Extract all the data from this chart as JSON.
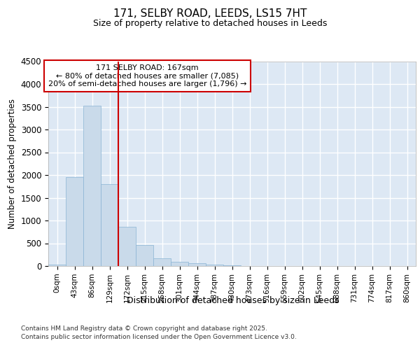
{
  "title_line1": "171, SELBY ROAD, LEEDS, LS15 7HT",
  "title_line2": "Size of property relative to detached houses in Leeds",
  "xlabel": "Distribution of detached houses by size in Leeds",
  "ylabel": "Number of detached properties",
  "annotation_title": "171 SELBY ROAD: 167sqm",
  "annotation_line2": "← 80% of detached houses are smaller (7,085)",
  "annotation_line3": "20% of semi-detached houses are larger (1,796) →",
  "bar_color": "#c9daea",
  "bar_edge_color": "#8ab4d4",
  "vline_color": "#cc0000",
  "annotation_box_color": "#cc0000",
  "background_color": "#dde8f4",
  "grid_color": "#ffffff",
  "categories": [
    "0sqm",
    "43sqm",
    "86sqm",
    "129sqm",
    "172sqm",
    "215sqm",
    "258sqm",
    "301sqm",
    "344sqm",
    "387sqm",
    "430sqm",
    "473sqm",
    "516sqm",
    "559sqm",
    "602sqm",
    "645sqm",
    "688sqm",
    "731sqm",
    "774sqm",
    "817sqm",
    "860sqm"
  ],
  "bar_values": [
    28,
    1950,
    3520,
    1800,
    860,
    460,
    175,
    100,
    58,
    30,
    12,
    0,
    0,
    0,
    0,
    0,
    0,
    0,
    0,
    0,
    0
  ],
  "ylim": [
    0,
    4500
  ],
  "yticks": [
    0,
    500,
    1000,
    1500,
    2000,
    2500,
    3000,
    3500,
    4000,
    4500
  ],
  "vline_index": 4,
  "footer_line1": "Contains HM Land Registry data © Crown copyright and database right 2025.",
  "footer_line2": "Contains public sector information licensed under the Open Government Licence v3.0."
}
